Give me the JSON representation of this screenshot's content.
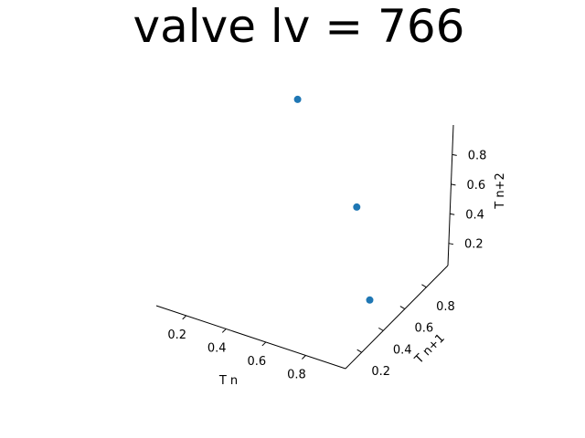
{
  "chart_data": {
    "type": "scatter",
    "title": "valve lv = 766",
    "xlabel": "T n",
    "ylabel": "T n+1",
    "zlabel": "T n+2",
    "xlim": [
      0.05,
      1.0
    ],
    "ylim": [
      0.05,
      1.0
    ],
    "zlim": [
      0.05,
      1.0
    ],
    "xticks": [
      "0.2",
      "0.4",
      "0.6",
      "0.8"
    ],
    "yticks": [
      "0.2",
      "0.4",
      "0.6",
      "0.8"
    ],
    "zticks": [
      "0.2",
      "0.4",
      "0.6",
      "0.8"
    ],
    "grid": false,
    "point_color": "#1f77b4",
    "points": [
      {
        "x": 0.3,
        "y": 0.85,
        "z": 0.97
      },
      {
        "x": 0.65,
        "y": 0.78,
        "z": 0.45
      },
      {
        "x": 0.85,
        "y": 0.55,
        "z": 0.08
      }
    ]
  }
}
